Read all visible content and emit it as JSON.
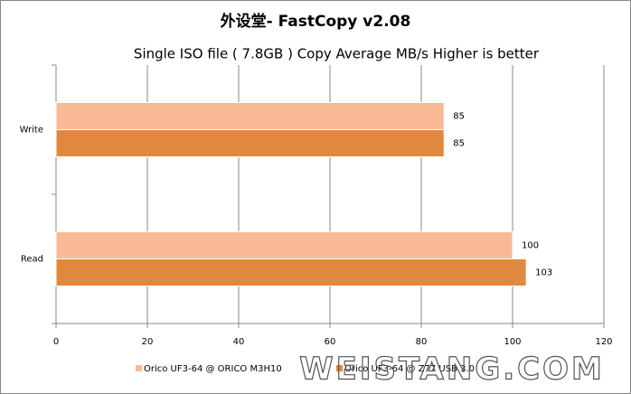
{
  "chart_data": {
    "type": "barh",
    "title": "外设堂- FastCopy v2.08",
    "subtitle": "Single ISO file ( 7.8GB ) Copy   Average MB/s   Higher is better",
    "categories": [
      "Write",
      "Read"
    ],
    "series": [
      {
        "name": "Orico UF3-64 @ ORICO M3H10",
        "color": "#f9b994",
        "values": [
          85,
          100
        ]
      },
      {
        "name": "Orico UF3-64 @ Z77 USB 3.0",
        "color": "#e0883e",
        "values": [
          85,
          103
        ]
      }
    ],
    "xlim": [
      0,
      120
    ],
    "xticks": [
      0,
      20,
      40,
      60,
      80,
      100,
      120
    ],
    "grid": true,
    "legend": "bottom",
    "watermark": "WEISTANG.COM"
  }
}
